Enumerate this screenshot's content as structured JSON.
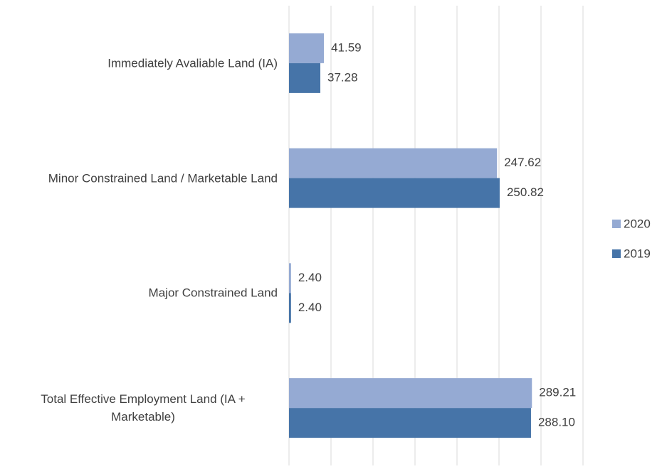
{
  "chart_data": {
    "type": "barh",
    "categories": [
      "Immediately Avaliable Land (IA)",
      "Minor Constrained Land / Marketable Land",
      "Major Constrained Land",
      "Total Effective Employment Land (IA + Marketable)"
    ],
    "series": [
      {
        "name": "2020",
        "color": "#95aad3",
        "values": [
          41.59,
          247.62,
          2.4,
          289.21
        ],
        "value_labels": [
          "41.59",
          "247.62",
          "2.40",
          "289.21"
        ]
      },
      {
        "name": "2019",
        "color": "#4674a8",
        "values": [
          37.28,
          250.82,
          2.4,
          288.1
        ],
        "value_labels": [
          "37.28",
          "250.82",
          "2.40",
          "288.10"
        ]
      }
    ],
    "xlim": [
      0,
      350
    ],
    "xticks": [
      0,
      50,
      100,
      150,
      200,
      250,
      300,
      350
    ],
    "grid": true,
    "legend": "right"
  }
}
